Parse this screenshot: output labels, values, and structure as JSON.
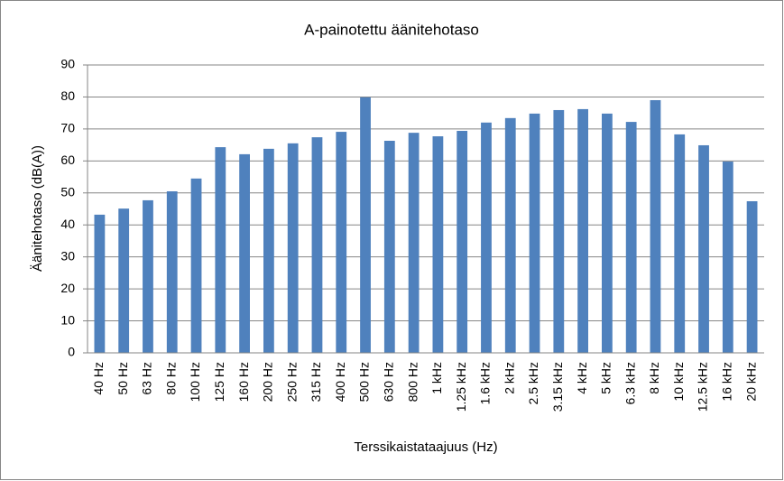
{
  "chart_data": {
    "type": "bar",
    "title": "A-painotettu äänitehotaso",
    "x_label": "Terssikaistataajuus (Hz)",
    "y_label": "Äänitehotaso (dB(A))",
    "categories": [
      "40 Hz",
      "50 Hz",
      "63 Hz",
      "80 Hz",
      "100 Hz",
      "125 Hz",
      "160 Hz",
      "200 Hz",
      "250 Hz",
      "315 Hz",
      "400 Hz",
      "500 Hz",
      "630 Hz",
      "800 Hz",
      "1 kHz",
      "1.25 kHz",
      "1.6 kHz",
      "2 kHz",
      "2.5 kHz",
      "3.15 kHz",
      "4 kHz",
      "5 kHz",
      "6.3 kHz",
      "8 kHz",
      "10 kHz",
      "12.5 kHz",
      "16 kHz",
      "20 kHz"
    ],
    "values": [
      43.2,
      45.1,
      47.7,
      50.5,
      54.5,
      64.3,
      62.1,
      63.8,
      65.5,
      67.4,
      69.1,
      79.9,
      66.3,
      68.8,
      67.7,
      69.4,
      72.0,
      73.4,
      74.8,
      75.9,
      76.2,
      74.8,
      72.2,
      79.0,
      68.3,
      64.9,
      59.8,
      47.4
    ],
    "color": "#4f81bd",
    "ylim": [
      0,
      90
    ],
    "yticks": [
      0,
      10,
      20,
      30,
      40,
      50,
      60,
      70,
      80,
      90
    ],
    "grid": true
  }
}
